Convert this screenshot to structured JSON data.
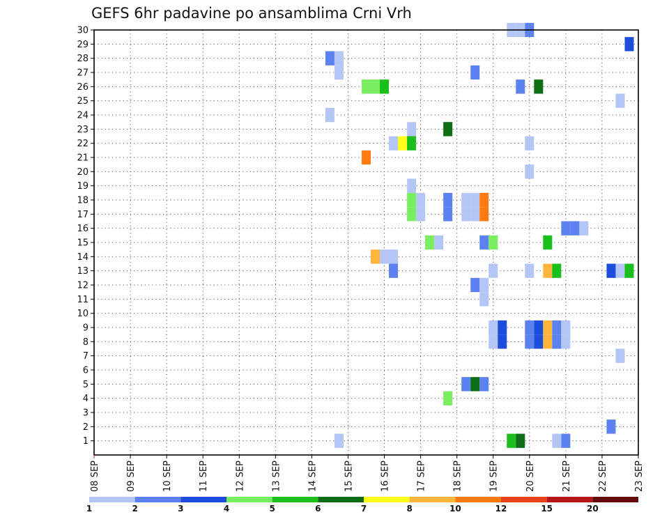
{
  "chart_data": {
    "type": "heatmap",
    "title": "GEFS 6hr padavine po ansamblima Crni Vrh",
    "y_ticks": [
      "1",
      "2",
      "3",
      "4",
      "5",
      "6",
      "7",
      "8",
      "9",
      "10",
      "11",
      "12",
      "13",
      "14",
      "15",
      "16",
      "17",
      "18",
      "19",
      "20",
      "21",
      "22",
      "23",
      "24",
      "25",
      "26",
      "27",
      "28",
      "29",
      "30"
    ],
    "x_ticks": [
      "08 SEP",
      "09 SEP",
      "10 SEP",
      "11 SEP",
      "12 SEP",
      "13 SEP",
      "14 SEP",
      "15 SEP",
      "16 SEP",
      "17 SEP",
      "18 SEP",
      "19 SEP",
      "20 SEP",
      "21 SEP",
      "22 SEP",
      "23 SEP"
    ],
    "ylim": [
      0,
      30
    ],
    "x_range_days": [
      "08 SEP",
      "23 SEP"
    ],
    "grid": true,
    "colorbar": {
      "labels": [
        "1",
        "2",
        "3",
        "4",
        "5",
        "6",
        "7",
        "8",
        "10",
        "12",
        "15",
        "20"
      ],
      "colors": [
        "#b4c6f5",
        "#5b82ee",
        "#1e4ddb",
        "#78ee60",
        "#1bbf1b",
        "#0d6e16",
        "#ffff1a",
        "#ffb43c",
        "#ff7a0f",
        "#ea401a",
        "#b41818",
        "#640c0c"
      ]
    },
    "cells_note_columns": "x = day offset from 08 SEP in days, y = ensemble member, level = colorbar class index",
    "cells": [
      {
        "x": 6.75,
        "y": 1,
        "level": 0
      },
      {
        "x": 11.5,
        "y": 1,
        "level": 4
      },
      {
        "x": 11.75,
        "y": 1,
        "level": 5
      },
      {
        "x": 12.75,
        "y": 1,
        "level": 0
      },
      {
        "x": 13.0,
        "y": 1,
        "level": 1
      },
      {
        "x": 14.25,
        "y": 2,
        "level": 1
      },
      {
        "x": 9.75,
        "y": 4,
        "level": 3
      },
      {
        "x": 10.25,
        "y": 5,
        "level": 1
      },
      {
        "x": 10.5,
        "y": 5,
        "level": 5
      },
      {
        "x": 10.75,
        "y": 5,
        "level": 1
      },
      {
        "x": 14.5,
        "y": 7,
        "level": 0
      },
      {
        "x": 11.0,
        "y": 8,
        "level": 0
      },
      {
        "x": 11.25,
        "y": 8,
        "level": 2
      },
      {
        "x": 12.0,
        "y": 8,
        "level": 1
      },
      {
        "x": 12.25,
        "y": 8,
        "level": 2
      },
      {
        "x": 12.5,
        "y": 8,
        "level": 7
      },
      {
        "x": 12.75,
        "y": 8,
        "level": 1
      },
      {
        "x": 13.0,
        "y": 8,
        "level": 0
      },
      {
        "x": 11.0,
        "y": 9,
        "level": 0
      },
      {
        "x": 11.25,
        "y": 9,
        "level": 2
      },
      {
        "x": 12.0,
        "y": 9,
        "level": 1
      },
      {
        "x": 12.25,
        "y": 9,
        "level": 2
      },
      {
        "x": 12.5,
        "y": 9,
        "level": 7
      },
      {
        "x": 12.75,
        "y": 9,
        "level": 1
      },
      {
        "x": 13.0,
        "y": 9,
        "level": 0
      },
      {
        "x": 10.75,
        "y": 11,
        "level": 0
      },
      {
        "x": 10.5,
        "y": 12,
        "level": 1
      },
      {
        "x": 10.75,
        "y": 12,
        "level": 0
      },
      {
        "x": 8.25,
        "y": 13,
        "level": 1
      },
      {
        "x": 11.0,
        "y": 13,
        "level": 0
      },
      {
        "x": 12.0,
        "y": 13,
        "level": 0
      },
      {
        "x": 12.5,
        "y": 13,
        "level": 7
      },
      {
        "x": 12.75,
        "y": 13,
        "level": 4
      },
      {
        "x": 14.25,
        "y": 13,
        "level": 2
      },
      {
        "x": 14.5,
        "y": 13,
        "level": 0
      },
      {
        "x": 14.75,
        "y": 13,
        "level": 4
      },
      {
        "x": 7.75,
        "y": 14,
        "level": 7
      },
      {
        "x": 8.0,
        "y": 14,
        "level": 0
      },
      {
        "x": 8.25,
        "y": 14,
        "level": 0
      },
      {
        "x": 9.25,
        "y": 15,
        "level": 3
      },
      {
        "x": 9.5,
        "y": 15,
        "level": 0
      },
      {
        "x": 10.75,
        "y": 15,
        "level": 1
      },
      {
        "x": 11.0,
        "y": 15,
        "level": 3
      },
      {
        "x": 12.5,
        "y": 15,
        "level": 4
      },
      {
        "x": 13.0,
        "y": 16,
        "level": 1
      },
      {
        "x": 13.25,
        "y": 16,
        "level": 1
      },
      {
        "x": 13.5,
        "y": 16,
        "level": 0
      },
      {
        "x": 8.75,
        "y": 17,
        "level": 3
      },
      {
        "x": 9.0,
        "y": 17,
        "level": 0
      },
      {
        "x": 9.75,
        "y": 17,
        "level": 1
      },
      {
        "x": 10.25,
        "y": 17,
        "level": 0
      },
      {
        "x": 10.5,
        "y": 17,
        "level": 0
      },
      {
        "x": 10.75,
        "y": 17,
        "level": 8
      },
      {
        "x": 8.75,
        "y": 18,
        "level": 3
      },
      {
        "x": 9.0,
        "y": 18,
        "level": 0
      },
      {
        "x": 9.75,
        "y": 18,
        "level": 1
      },
      {
        "x": 10.25,
        "y": 18,
        "level": 0
      },
      {
        "x": 10.5,
        "y": 18,
        "level": 0
      },
      {
        "x": 10.75,
        "y": 18,
        "level": 8
      },
      {
        "x": 8.75,
        "y": 19,
        "level": 0
      },
      {
        "x": 12.0,
        "y": 20,
        "level": 0
      },
      {
        "x": 7.5,
        "y": 21,
        "level": 8
      },
      {
        "x": 8.25,
        "y": 22,
        "level": 0
      },
      {
        "x": 8.5,
        "y": 22,
        "level": 6
      },
      {
        "x": 8.75,
        "y": 22,
        "level": 4
      },
      {
        "x": 12.0,
        "y": 22,
        "level": 0
      },
      {
        "x": 8.75,
        "y": 23,
        "level": 0
      },
      {
        "x": 9.75,
        "y": 23,
        "level": 5
      },
      {
        "x": 6.5,
        "y": 24,
        "level": 0
      },
      {
        "x": 14.5,
        "y": 25,
        "level": 0
      },
      {
        "x": 7.5,
        "y": 26,
        "level": 3
      },
      {
        "x": 7.75,
        "y": 26,
        "level": 3
      },
      {
        "x": 8.0,
        "y": 26,
        "level": 4
      },
      {
        "x": 11.75,
        "y": 26,
        "level": 1
      },
      {
        "x": 12.25,
        "y": 26,
        "level": 5
      },
      {
        "x": 6.75,
        "y": 27,
        "level": 0
      },
      {
        "x": 10.5,
        "y": 27,
        "level": 1
      },
      {
        "x": 6.5,
        "y": 28,
        "level": 1
      },
      {
        "x": 6.75,
        "y": 28,
        "level": 0
      },
      {
        "x": 14.75,
        "y": 29,
        "level": 2
      },
      {
        "x": 11.5,
        "y": 30,
        "level": 0
      },
      {
        "x": 11.75,
        "y": 30,
        "level": 0
      },
      {
        "x": 12.0,
        "y": 30,
        "level": 1
      }
    ]
  }
}
